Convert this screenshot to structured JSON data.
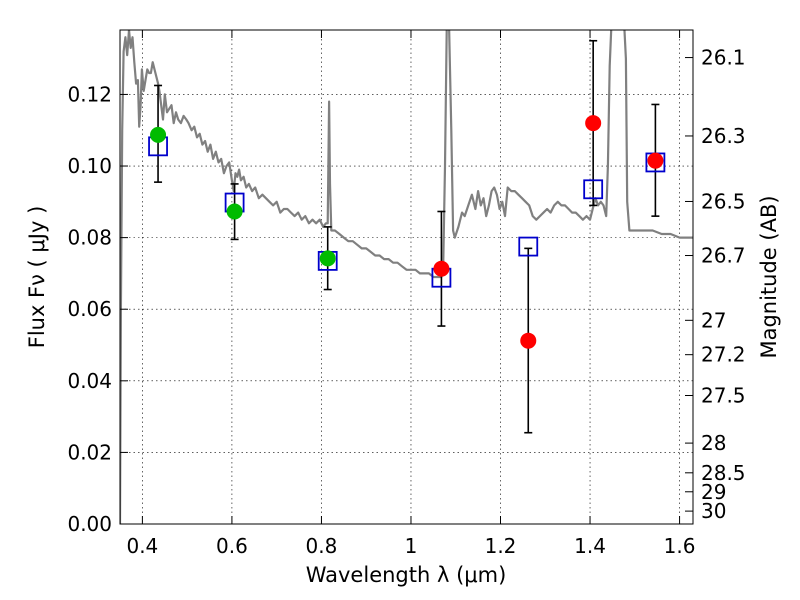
{
  "chart_data": {
    "type": "scatter",
    "xlabel": "Wavelength  λ (μm)",
    "ylabel": "Flux  Fν  ( μJy )",
    "ylabel_right": "Magnitude (AB)",
    "xlim": [
      0.35,
      1.63
    ],
    "ylim": [
      0.0,
      0.138
    ],
    "x_ticks": [
      0.4,
      0.6,
      0.8,
      1.0,
      1.2,
      1.4,
      1.6
    ],
    "x_tick_labels": [
      "0.4",
      "0.6",
      "0.8",
      "1",
      "1.2",
      "1.4",
      "1.6"
    ],
    "y_ticks": [
      0.0,
      0.02,
      0.04,
      0.06,
      0.08,
      0.1,
      0.12
    ],
    "y_tick_labels": [
      "0.00",
      "0.02",
      "0.04",
      "0.06",
      "0.08",
      "0.10",
      "0.12"
    ],
    "mag_ticks": [
      {
        "label": "26.1",
        "flux": 0.1303
      },
      {
        "label": "26.3",
        "flux": 0.1084
      },
      {
        "label": "26.5",
        "flux": 0.0901
      },
      {
        "label": "26.7",
        "flux": 0.075
      },
      {
        "label": "27",
        "flux": 0.0569
      },
      {
        "label": "27.2",
        "flux": 0.0473
      },
      {
        "label": "27.5",
        "flux": 0.0359
      },
      {
        "label": "28",
        "flux": 0.0226
      },
      {
        "label": "28.5",
        "flux": 0.0143
      },
      {
        "label": "29",
        "flux": 0.009
      },
      {
        "label": "30",
        "flux": 0.0036
      }
    ],
    "grid": true,
    "colors": {
      "green": "#00bb00",
      "red": "#ff0000",
      "model_box": "#0000cc",
      "spectrum": "#808080",
      "errorbar": "#000000"
    },
    "observed_green": [
      {
        "x": 0.435,
        "y": 0.1087,
        "lo": 0.0955,
        "hi": 0.1225
      },
      {
        "x": 0.606,
        "y": 0.0873,
        "lo": 0.0795,
        "hi": 0.095
      },
      {
        "x": 0.814,
        "y": 0.0742,
        "lo": 0.0655,
        "hi": 0.083
      }
    ],
    "observed_red": [
      {
        "x": 1.068,
        "y": 0.0713,
        "lo": 0.0553,
        "hi": 0.0873
      },
      {
        "x": 1.262,
        "y": 0.0512,
        "lo": 0.0255,
        "hi": 0.077
      },
      {
        "x": 1.407,
        "y": 0.112,
        "lo": 0.089,
        "hi": 0.135
      },
      {
        "x": 1.546,
        "y": 0.1015,
        "lo": 0.086,
        "hi": 0.1172
      }
    ],
    "model_photometry": [
      {
        "x": 0.435,
        "y": 0.1055
      },
      {
        "x": 0.606,
        "y": 0.0898
      },
      {
        "x": 0.814,
        "y": 0.0735
      },
      {
        "x": 1.068,
        "y": 0.0688
      },
      {
        "x": 1.262,
        "y": 0.0775
      },
      {
        "x": 1.407,
        "y": 0.0935
      },
      {
        "x": 1.546,
        "y": 0.101
      }
    ],
    "spectrum": [
      [
        0.35,
        0.0
      ],
      [
        0.352,
        0.06
      ],
      [
        0.355,
        0.11
      ],
      [
        0.358,
        0.132
      ],
      [
        0.362,
        0.136
      ],
      [
        0.366,
        0.131
      ],
      [
        0.37,
        0.138
      ],
      [
        0.374,
        0.133
      ],
      [
        0.378,
        0.136
      ],
      [
        0.382,
        0.129
      ],
      [
        0.386,
        0.123
      ],
      [
        0.39,
        0.124
      ],
      [
        0.393,
        0.111
      ],
      [
        0.396,
        0.117
      ],
      [
        0.399,
        0.127
      ],
      [
        0.403,
        0.121
      ],
      [
        0.407,
        0.124
      ],
      [
        0.411,
        0.127
      ],
      [
        0.415,
        0.126
      ],
      [
        0.419,
        0.126
      ],
      [
        0.423,
        0.129
      ],
      [
        0.427,
        0.127
      ],
      [
        0.431,
        0.125
      ],
      [
        0.435,
        0.123
      ],
      [
        0.438,
        0.121
      ],
      [
        0.442,
        0.117
      ],
      [
        0.446,
        0.113
      ],
      [
        0.45,
        0.12
      ],
      [
        0.455,
        0.115
      ],
      [
        0.46,
        0.116
      ],
      [
        0.465,
        0.117
      ],
      [
        0.47,
        0.112
      ],
      [
        0.475,
        0.115
      ],
      [
        0.48,
        0.113
      ],
      [
        0.486,
        0.112
      ],
      [
        0.492,
        0.114
      ],
      [
        0.498,
        0.113
      ],
      [
        0.503,
        0.112
      ],
      [
        0.51,
        0.11
      ],
      [
        0.516,
        0.111
      ],
      [
        0.522,
        0.108
      ],
      [
        0.528,
        0.109
      ],
      [
        0.534,
        0.106
      ],
      [
        0.54,
        0.107
      ],
      [
        0.546,
        0.104
      ],
      [
        0.552,
        0.106
      ],
      [
        0.558,
        0.102
      ],
      [
        0.564,
        0.104
      ],
      [
        0.57,
        0.101
      ],
      [
        0.576,
        0.102
      ],
      [
        0.582,
        0.098
      ],
      [
        0.588,
        0.1
      ],
      [
        0.594,
        0.101
      ],
      [
        0.6,
        0.096
      ],
      [
        0.604,
        0.093
      ],
      [
        0.608,
        0.098
      ],
      [
        0.612,
        0.097
      ],
      [
        0.616,
        0.099
      ],
      [
        0.62,
        0.096
      ],
      [
        0.626,
        0.097
      ],
      [
        0.632,
        0.094
      ],
      [
        0.638,
        0.095
      ],
      [
        0.645,
        0.093
      ],
      [
        0.652,
        0.094
      ],
      [
        0.66,
        0.091
      ],
      [
        0.668,
        0.092
      ],
      [
        0.676,
        0.091
      ],
      [
        0.684,
        0.09
      ],
      [
        0.692,
        0.089
      ],
      [
        0.7,
        0.09
      ],
      [
        0.708,
        0.087
      ],
      [
        0.716,
        0.088
      ],
      [
        0.724,
        0.088
      ],
      [
        0.732,
        0.087
      ],
      [
        0.74,
        0.086
      ],
      [
        0.748,
        0.087
      ],
      [
        0.756,
        0.085
      ],
      [
        0.764,
        0.086
      ],
      [
        0.772,
        0.084
      ],
      [
        0.78,
        0.085
      ],
      [
        0.788,
        0.084
      ],
      [
        0.796,
        0.085
      ],
      [
        0.804,
        0.083
      ],
      [
        0.81,
        0.084
      ],
      [
        0.814,
        0.084
      ],
      [
        0.817,
        0.118
      ],
      [
        0.819,
        0.095
      ],
      [
        0.822,
        0.082
      ],
      [
        0.83,
        0.082
      ],
      [
        0.84,
        0.081
      ],
      [
        0.85,
        0.08
      ],
      [
        0.86,
        0.079
      ],
      [
        0.87,
        0.079
      ],
      [
        0.88,
        0.078
      ],
      [
        0.89,
        0.077
      ],
      [
        0.9,
        0.077
      ],
      [
        0.91,
        0.076
      ],
      [
        0.92,
        0.075
      ],
      [
        0.93,
        0.075
      ],
      [
        0.94,
        0.074
      ],
      [
        0.95,
        0.074
      ],
      [
        0.96,
        0.073
      ],
      [
        0.97,
        0.073
      ],
      [
        0.98,
        0.072
      ],
      [
        0.99,
        0.071
      ],
      [
        1.0,
        0.071
      ],
      [
        1.01,
        0.071
      ],
      [
        1.02,
        0.07
      ],
      [
        1.03,
        0.07
      ],
      [
        1.04,
        0.07
      ],
      [
        1.05,
        0.069
      ],
      [
        1.06,
        0.069
      ],
      [
        1.068,
        0.069
      ],
      [
        1.072,
        0.072
      ],
      [
        1.076,
        0.1
      ],
      [
        1.08,
        0.14
      ],
      [
        1.085,
        0.14
      ],
      [
        1.09,
        0.11
      ],
      [
        1.094,
        0.082
      ],
      [
        1.098,
        0.08
      ],
      [
        1.106,
        0.083
      ],
      [
        1.114,
        0.087
      ],
      [
        1.12,
        0.086
      ],
      [
        1.128,
        0.089
      ],
      [
        1.136,
        0.092
      ],
      [
        1.144,
        0.088
      ],
      [
        1.15,
        0.093
      ],
      [
        1.156,
        0.089
      ],
      [
        1.162,
        0.091
      ],
      [
        1.168,
        0.086
      ],
      [
        1.174,
        0.089
      ],
      [
        1.18,
        0.093
      ],
      [
        1.186,
        0.094
      ],
      [
        1.192,
        0.092
      ],
      [
        1.198,
        0.088
      ],
      [
        1.204,
        0.09
      ],
      [
        1.21,
        0.086
      ],
      [
        1.216,
        0.094
      ],
      [
        1.224,
        0.093
      ],
      [
        1.232,
        0.093
      ],
      [
        1.24,
        0.092
      ],
      [
        1.248,
        0.091
      ],
      [
        1.256,
        0.09
      ],
      [
        1.264,
        0.089
      ],
      [
        1.272,
        0.086
      ],
      [
        1.28,
        0.085
      ],
      [
        1.288,
        0.086
      ],
      [
        1.296,
        0.087
      ],
      [
        1.304,
        0.088
      ],
      [
        1.312,
        0.087
      ],
      [
        1.32,
        0.089
      ],
      [
        1.328,
        0.09
      ],
      [
        1.336,
        0.089
      ],
      [
        1.344,
        0.089
      ],
      [
        1.352,
        0.088
      ],
      [
        1.36,
        0.087
      ],
      [
        1.368,
        0.087
      ],
      [
        1.376,
        0.086
      ],
      [
        1.384,
        0.085
      ],
      [
        1.392,
        0.086
      ],
      [
        1.4,
        0.085
      ],
      [
        1.408,
        0.089
      ],
      [
        1.412,
        0.091
      ],
      [
        1.418,
        0.089
      ],
      [
        1.424,
        0.09
      ],
      [
        1.43,
        0.089
      ],
      [
        1.436,
        0.086
      ],
      [
        1.44,
        0.1
      ],
      [
        1.444,
        0.128
      ],
      [
        1.448,
        0.14
      ],
      [
        1.476,
        0.14
      ],
      [
        1.48,
        0.13
      ],
      [
        1.483,
        0.09
      ],
      [
        1.488,
        0.082
      ],
      [
        1.5,
        0.082
      ],
      [
        1.52,
        0.082
      ],
      [
        1.54,
        0.082
      ],
      [
        1.56,
        0.081
      ],
      [
        1.58,
        0.081
      ],
      [
        1.6,
        0.08
      ],
      [
        1.63,
        0.08
      ]
    ]
  }
}
